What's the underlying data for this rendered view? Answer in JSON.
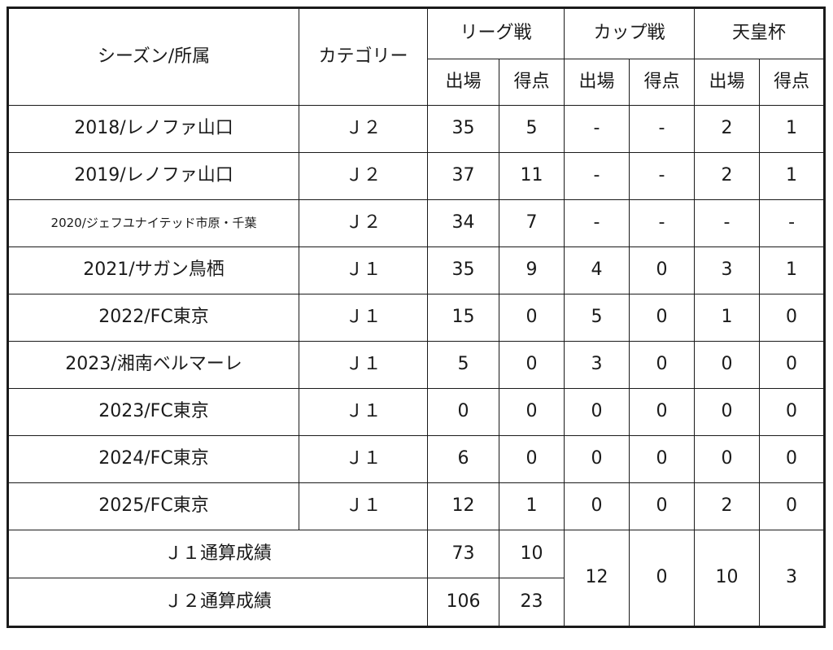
{
  "header": {
    "season": "シーズン/所属",
    "category": "カテゴリー",
    "league": "リーグ戦",
    "cup": "カップ戦",
    "emperor": "天皇杯",
    "apps": "出場",
    "goals": "得点"
  },
  "rows": [
    {
      "season": "2018/レノファ山口",
      "category": "Ｊ２",
      "league_apps": "35",
      "league_goals": "5",
      "cup_apps": "-",
      "cup_goals": "-",
      "emp_apps": "2",
      "emp_goals": "1"
    },
    {
      "season": "2019/レノファ山口",
      "category": "Ｊ２",
      "league_apps": "37",
      "league_goals": "11",
      "cup_apps": "-",
      "cup_goals": "-",
      "emp_apps": "2",
      "emp_goals": "1"
    },
    {
      "season": "2020/ジェフユナイテッド市原・千葉",
      "category": "Ｊ２",
      "league_apps": "34",
      "league_goals": "7",
      "cup_apps": "-",
      "cup_goals": "-",
      "emp_apps": "-",
      "emp_goals": "-"
    },
    {
      "season": "2021/サガン鳥栖",
      "category": "Ｊ１",
      "league_apps": "35",
      "league_goals": "9",
      "cup_apps": "4",
      "cup_goals": "0",
      "emp_apps": "3",
      "emp_goals": "1"
    },
    {
      "season": "2022/FC東京",
      "category": "Ｊ１",
      "league_apps": "15",
      "league_goals": "0",
      "cup_apps": "5",
      "cup_goals": "0",
      "emp_apps": "1",
      "emp_goals": "0"
    },
    {
      "season": "2023/湘南ベルマーレ",
      "category": "Ｊ１",
      "league_apps": "5",
      "league_goals": "0",
      "cup_apps": "3",
      "cup_goals": "0",
      "emp_apps": "0",
      "emp_goals": "0"
    },
    {
      "season": "2023/FC東京",
      "category": "Ｊ１",
      "league_apps": "0",
      "league_goals": "0",
      "cup_apps": "0",
      "cup_goals": "0",
      "emp_apps": "0",
      "emp_goals": "0"
    },
    {
      "season": "2024/FC東京",
      "category": "Ｊ１",
      "league_apps": "6",
      "league_goals": "0",
      "cup_apps": "0",
      "cup_goals": "0",
      "emp_apps": "0",
      "emp_goals": "0"
    },
    {
      "season": "2025/FC東京",
      "category": "Ｊ１",
      "league_apps": "12",
      "league_goals": "1",
      "cup_apps": "0",
      "cup_goals": "0",
      "emp_apps": "2",
      "emp_goals": "0"
    }
  ],
  "totals": {
    "j1": {
      "label": "Ｊ１通算成績",
      "league_apps": "73",
      "league_goals": "10"
    },
    "j2": {
      "label": "Ｊ２通算成績",
      "league_apps": "106",
      "league_goals": "23"
    },
    "cup_apps": "12",
    "cup_goals": "0",
    "emp_apps": "10",
    "emp_goals": "3"
  }
}
